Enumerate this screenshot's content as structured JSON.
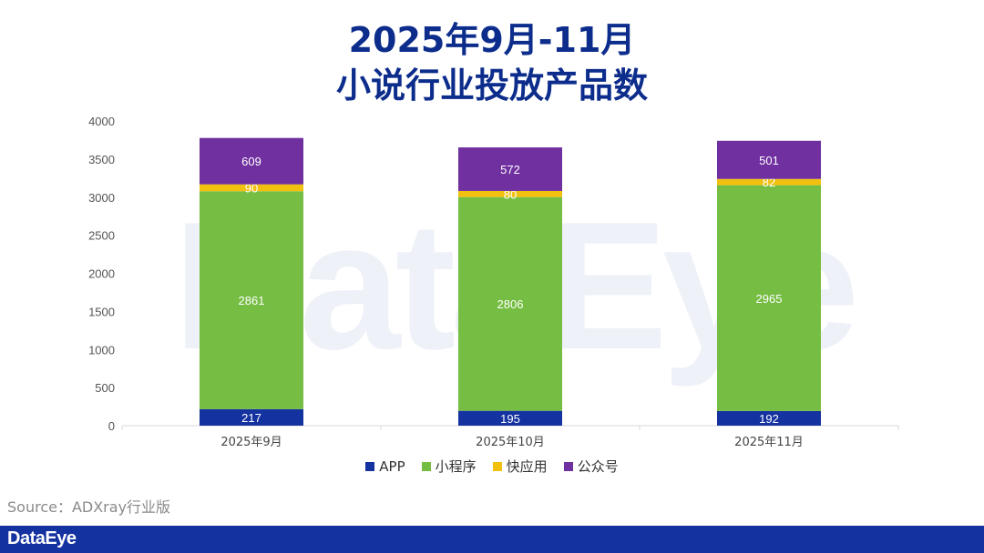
{
  "title": {
    "line1": "2025年9月-11月",
    "line2": "小说行业投放产品数"
  },
  "watermark": "DataEye",
  "source": "Source：ADXray行业版",
  "brand": "DataEye",
  "colors": {
    "title": "#0d2d8c",
    "APP": "#1432a0",
    "mini_program": "#76bd43",
    "kuaiyingyong": "#f2c00f",
    "gongzhonghao": "#7030a0",
    "footer": "#1432a0"
  },
  "chart_data": {
    "type": "bar",
    "stacked": true,
    "categories": [
      "2025年9月",
      "2025年10月",
      "2025年11月"
    ],
    "series": [
      {
        "name": "APP",
        "values": [
          217,
          195,
          192
        ],
        "color": "#1432a0"
      },
      {
        "name": "小程序",
        "values": [
          2861,
          2806,
          2965
        ],
        "color": "#76bd43"
      },
      {
        "name": "快应用",
        "values": [
          90,
          80,
          82
        ],
        "color": "#f2c00f"
      },
      {
        "name": "公众号",
        "values": [
          609,
          572,
          501
        ],
        "color": "#7030a0"
      }
    ],
    "title": "",
    "xlabel": "",
    "ylabel": "",
    "ylim": [
      0,
      4000
    ],
    "yticks": [
      0,
      500,
      1000,
      1500,
      2000,
      2500,
      3000,
      3500,
      4000
    ],
    "grid": false,
    "legend_position": "bottom"
  }
}
